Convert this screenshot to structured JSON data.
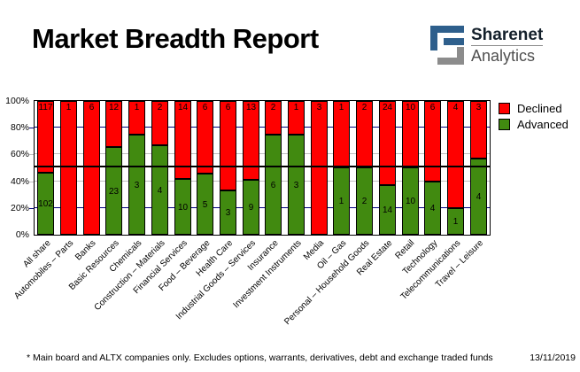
{
  "header": {
    "title": "Market Breadth Report",
    "logo": {
      "name": "Sharenet",
      "sub": "Analytics",
      "mark_colors": {
        "blue": "#2e5f8c",
        "gray": "#8c8c8c"
      }
    }
  },
  "chart_data": {
    "type": "bar",
    "variant": "100%-stacked-column",
    "categories": [
      "All share",
      "Automobiles – Parts",
      "Banks",
      "Basic Resources",
      "Chemicals",
      "Construction – Materials",
      "Financial Services",
      "Food – Beverage",
      "Health Care",
      "Industrial Goods – Services",
      "Insurance",
      "Investment Instruments",
      "Media",
      "Oil – Gas",
      "Personal – Household Goods",
      "Real Estate",
      "Retail",
      "Technology",
      "Telecommunications",
      "Travel – Leisure"
    ],
    "series": [
      {
        "name": "Declined",
        "color": "#ff0000",
        "values": [
          117,
          1,
          6,
          12,
          1,
          2,
          14,
          6,
          6,
          13,
          2,
          1,
          3,
          1,
          2,
          24,
          10,
          6,
          4,
          3
        ]
      },
      {
        "name": "Advanced",
        "color": "#418a10",
        "values": [
          102,
          0,
          0,
          23,
          3,
          4,
          10,
          5,
          3,
          9,
          6,
          3,
          0,
          1,
          2,
          14,
          10,
          4,
          1,
          4
        ]
      }
    ],
    "value_labels": "counts shown inside segments; zero counts unlabeled",
    "y_axis": {
      "min": 0,
      "max": 100,
      "ticks": [
        {
          "v": 0,
          "label": "0%"
        },
        {
          "v": 20,
          "label": "20%"
        },
        {
          "v": 40,
          "label": "40%"
        },
        {
          "v": 60,
          "label": "60%"
        },
        {
          "v": 80,
          "label": "80%"
        },
        {
          "v": 100,
          "label": "100%"
        }
      ]
    },
    "gridlines": [
      {
        "v": 20,
        "color": "#000080"
      },
      {
        "v": 40,
        "color": "#c0c0c0"
      },
      {
        "v": 60,
        "color": "#c0c0c0"
      },
      {
        "v": 80,
        "color": "#000080"
      }
    ],
    "reference_line": {
      "v": 50,
      "color": "#000000"
    },
    "legend": {
      "position": "top-right",
      "entries": [
        {
          "label": "Declined",
          "color": "#ff0000"
        },
        {
          "label": "Advanced",
          "color": "#418a10"
        }
      ]
    }
  },
  "footer": {
    "note": "* Main board and ALTX companies only. Excludes options, warrants, derivatives, debt and exchange traded funds",
    "date": "13/11/2019"
  }
}
